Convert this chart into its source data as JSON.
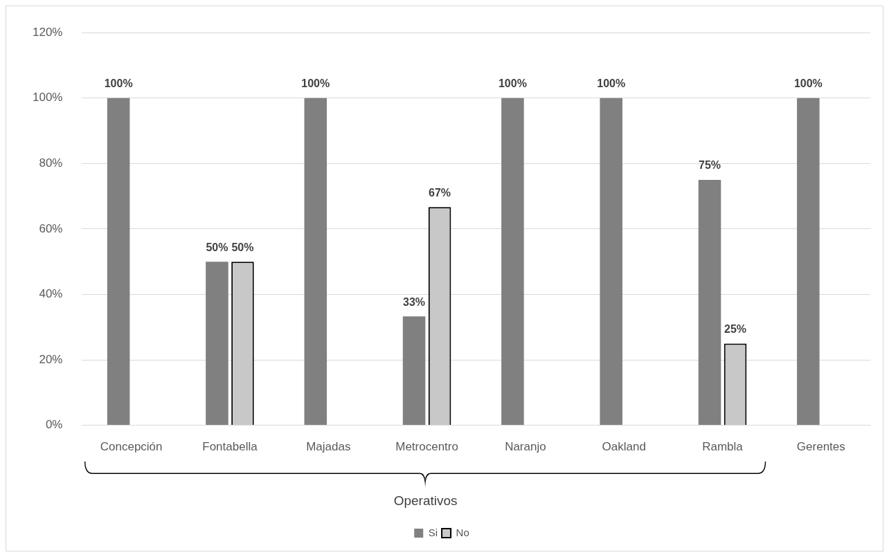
{
  "chart_data": {
    "type": "bar",
    "categories": [
      "Concepción",
      "Fontabella",
      "Majadas",
      "Metrocentro",
      "Naranjo",
      "Oakland",
      "Rambla",
      "Gerentes"
    ],
    "series": [
      {
        "name": "Si",
        "color": "#808080",
        "values": [
          100,
          50,
          100,
          33.3,
          100,
          100,
          75,
          100
        ],
        "value_labels": [
          "100%",
          "50%",
          "100%",
          "33%",
          "100%",
          "100%",
          "75%",
          "100%"
        ]
      },
      {
        "name": "No",
        "color": "#c8c8c8",
        "values": [
          null,
          50,
          null,
          66.7,
          null,
          null,
          25,
          null
        ],
        "value_labels": [
          null,
          "50%",
          null,
          "67%",
          null,
          null,
          "25%",
          null
        ]
      }
    ],
    "ylim": [
      0,
      120
    ],
    "yticks": [
      {
        "value": 0,
        "label": "0%"
      },
      {
        "value": 20,
        "label": "20%"
      },
      {
        "value": 40,
        "label": "40%"
      },
      {
        "value": 60,
        "label": "60%"
      },
      {
        "value": 80,
        "label": "80%"
      },
      {
        "value": 100,
        "label": "100%"
      },
      {
        "value": 120,
        "label": "120%"
      }
    ],
    "grid": "y",
    "legend": "bottom",
    "annotations": [
      "Operativos"
    ]
  }
}
